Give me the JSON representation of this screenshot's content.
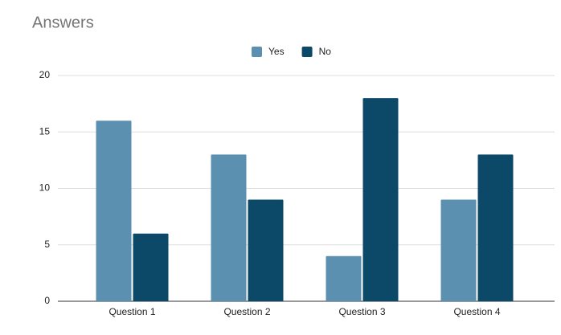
{
  "chart_data": {
    "type": "bar",
    "title": "Answers",
    "categories": [
      "Question 1",
      "Question 2",
      "Question 3",
      "Question 4"
    ],
    "series": [
      {
        "name": "Yes",
        "color": "#5b90b0",
        "values": [
          16,
          13,
          4,
          9
        ]
      },
      {
        "name": "No",
        "color": "#0c4868",
        "values": [
          6,
          9,
          18,
          13
        ]
      }
    ],
    "ylim": [
      0,
      20
    ],
    "yticks": [
      0,
      5,
      10,
      15,
      20
    ],
    "grid": true,
    "legend": "top"
  }
}
